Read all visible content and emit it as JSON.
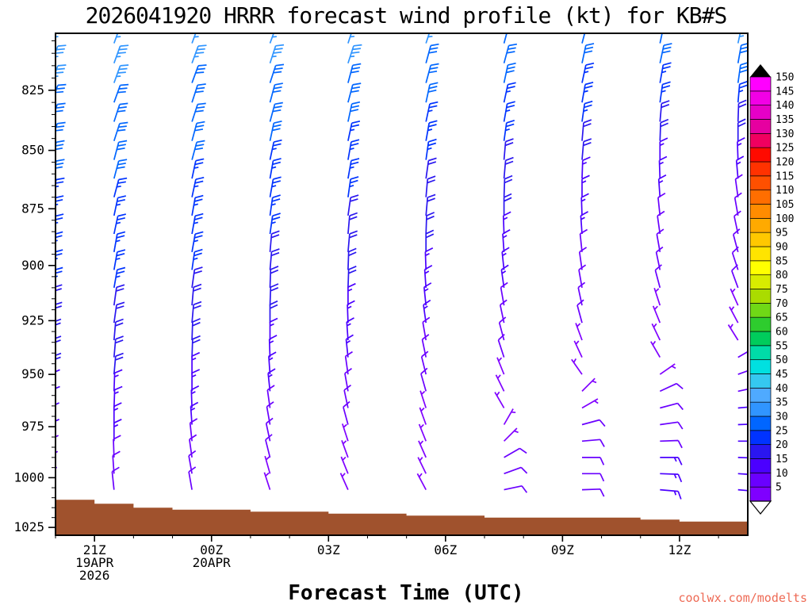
{
  "title": "2026041920 HRRR forecast wind profile (kt) for KB#S",
  "x_axis_label": "Forecast Time (UTC)",
  "watermark": "coolwx.com/modelts",
  "colors": {
    "background": "#ffffff",
    "axis": "#000000",
    "terrain": "#a0522d",
    "watermark": "#ee6a55"
  },
  "chart_data": {
    "type": "scatter",
    "subtype": "time-height wind barb profile",
    "model": "HRRR",
    "init_time": "2026041920",
    "station": "KB#S",
    "units": "kt",
    "x_axis": {
      "label": "Forecast Time (UTC)",
      "hour_range": [
        20.0,
        37.75
      ],
      "major_ticks": [
        {
          "hour": 21,
          "label": "21Z",
          "sub": [
            "19APR",
            "2026"
          ]
        },
        {
          "hour": 24,
          "label": "00Z",
          "sub": [
            "20APR"
          ]
        },
        {
          "hour": 27,
          "label": "03Z",
          "sub": []
        },
        {
          "hour": 30,
          "label": "06Z",
          "sub": []
        },
        {
          "hour": 33,
          "label": "09Z",
          "sub": []
        },
        {
          "hour": 36,
          "label": "12Z",
          "sub": []
        }
      ],
      "minor_tick_every_hours": 1
    },
    "y_axis": {
      "units": "hPa",
      "scale": "log",
      "range": [
        802,
        1029
      ],
      "major_ticks": [
        825,
        850,
        875,
        900,
        925,
        950,
        975,
        1000,
        1025
      ],
      "minor_step": 5
    },
    "legend": {
      "values_kt": [
        5,
        10,
        15,
        20,
        25,
        30,
        35,
        40,
        45,
        50,
        55,
        60,
        65,
        70,
        75,
        80,
        85,
        90,
        95,
        100,
        105,
        110,
        115,
        120,
        125,
        130,
        135,
        140,
        145,
        150
      ],
      "palette": [
        "#7f00ff",
        "#6a00ff",
        "#4b00ff",
        "#2a16f0",
        "#0033ff",
        "#0066ff",
        "#3095ff",
        "#4faaff",
        "#35c8f0",
        "#00e0e0",
        "#00dca8",
        "#00cc5c",
        "#2ecc2e",
        "#70d816",
        "#aadc00",
        "#d8ec00",
        "#ffff00",
        "#ffe400",
        "#ffc800",
        "#ffaa00",
        "#ff8c00",
        "#ff6e00",
        "#ff5000",
        "#ff3200",
        "#ff0a00",
        "#f00060",
        "#e600a0",
        "#e600c8",
        "#f200e6",
        "#ff00ff"
      ],
      "over_arrow": "black-up-triangle",
      "under_arrow": "white-down-triangle"
    },
    "terrain": {
      "color": "#a0522d",
      "surface_pressure_hpa_by_hour": [
        [
          20,
          1011
        ],
        [
          21,
          1013
        ],
        [
          22,
          1015
        ],
        [
          23,
          1016
        ],
        [
          24,
          1016
        ],
        [
          25,
          1017
        ],
        [
          26,
          1017
        ],
        [
          27,
          1018
        ],
        [
          28,
          1018
        ],
        [
          29,
          1019
        ],
        [
          30,
          1019
        ],
        [
          31,
          1020
        ],
        [
          32,
          1020
        ],
        [
          33,
          1020
        ],
        [
          34,
          1020
        ],
        [
          35,
          1021
        ],
        [
          36,
          1022
        ],
        [
          37,
          1022
        ],
        [
          38,
          1023
        ]
      ]
    },
    "pressure_levels_hpa": [
      806,
      814,
      822,
      830,
      838,
      846,
      854,
      862,
      870,
      878,
      886,
      894,
      902,
      910,
      918,
      926,
      934,
      942,
      950,
      958,
      966,
      974,
      982,
      990,
      998,
      1006
    ],
    "wind_columns": [
      {
        "hour": 19.9,
        "speed_kt": [
          35,
          35,
          35,
          30,
          30,
          30,
          30,
          30,
          25,
          25,
          25,
          25,
          25,
          25,
          20,
          20,
          20,
          20,
          20,
          15,
          15,
          15,
          15,
          10,
          10,
          10
        ],
        "direction_deg": [
          20,
          20,
          20,
          20,
          18,
          18,
          15,
          15,
          15,
          12,
          12,
          10,
          10,
          10,
          8,
          8,
          5,
          5,
          5,
          2,
          2,
          0,
          0,
          358,
          356,
          354
        ]
      },
      {
        "hour": 21.5,
        "speed_kt": [
          35,
          35,
          35,
          30,
          30,
          30,
          30,
          30,
          25,
          25,
          25,
          25,
          25,
          25,
          20,
          20,
          20,
          20,
          20,
          15,
          15,
          15,
          15,
          10,
          10,
          10
        ],
        "direction_deg": [
          20,
          20,
          20,
          20,
          18,
          18,
          15,
          15,
          15,
          12,
          12,
          10,
          10,
          10,
          8,
          8,
          5,
          5,
          5,
          2,
          2,
          0,
          0,
          358,
          356,
          354
        ]
      },
      {
        "hour": 23.5,
        "speed_kt": [
          35,
          35,
          30,
          30,
          30,
          30,
          30,
          25,
          25,
          25,
          25,
          25,
          25,
          20,
          20,
          20,
          20,
          20,
          15,
          15,
          15,
          15,
          10,
          10,
          10,
          10
        ],
        "direction_deg": [
          20,
          20,
          20,
          18,
          18,
          15,
          15,
          12,
          12,
          10,
          10,
          10,
          8,
          8,
          5,
          5,
          2,
          2,
          0,
          0,
          358,
          356,
          354,
          352,
          350,
          350
        ]
      },
      {
        "hour": 25.5,
        "speed_kt": [
          35,
          35,
          30,
          30,
          30,
          30,
          25,
          25,
          25,
          25,
          25,
          20,
          20,
          20,
          20,
          20,
          15,
          15,
          15,
          15,
          10,
          10,
          10,
          10,
          5,
          5
        ],
        "direction_deg": [
          20,
          18,
          18,
          15,
          15,
          12,
          12,
          10,
          10,
          8,
          8,
          5,
          5,
          2,
          2,
          0,
          0,
          358,
          356,
          354,
          352,
          350,
          348,
          346,
          344,
          342
        ]
      },
      {
        "hour": 27.5,
        "speed_kt": [
          35,
          35,
          30,
          30,
          30,
          25,
          25,
          25,
          25,
          20,
          20,
          20,
          20,
          20,
          15,
          15,
          15,
          15,
          10,
          10,
          10,
          10,
          5,
          5,
          5,
          5
        ],
        "direction_deg": [
          18,
          18,
          15,
          15,
          12,
          12,
          10,
          10,
          8,
          8,
          5,
          5,
          2,
          2,
          0,
          358,
          356,
          354,
          352,
          350,
          348,
          345,
          342,
          340,
          338,
          336
        ]
      },
      {
        "hour": 29.5,
        "speed_kt": [
          35,
          30,
          30,
          30,
          25,
          25,
          25,
          20,
          20,
          20,
          20,
          20,
          15,
          15,
          15,
          15,
          10,
          10,
          10,
          10,
          5,
          5,
          5,
          5,
          5,
          5
        ],
        "direction_deg": [
          18,
          15,
          15,
          12,
          12,
          10,
          8,
          8,
          5,
          5,
          2,
          0,
          358,
          356,
          354,
          352,
          350,
          348,
          346,
          344,
          342,
          340,
          338,
          336,
          334,
          332
        ]
      },
      {
        "hour": 31.5,
        "speed_kt": [
          30,
          30,
          30,
          25,
          25,
          25,
          20,
          20,
          20,
          20,
          15,
          15,
          15,
          15,
          10,
          10,
          10,
          10,
          5,
          5,
          5,
          5,
          5,
          10,
          10,
          10
        ],
        "direction_deg": [
          15,
          15,
          12,
          12,
          10,
          8,
          5,
          5,
          2,
          0,
          358,
          356,
          354,
          352,
          350,
          348,
          345,
          342,
          338,
          334,
          330,
          30,
          45,
          60,
          70,
          78
        ]
      },
      {
        "hour": 33.5,
        "speed_kt": [
          30,
          30,
          25,
          25,
          25,
          20,
          20,
          15,
          15,
          15,
          15,
          10,
          10,
          10,
          10,
          10,
          5,
          5,
          5,
          5,
          5,
          10,
          10,
          10,
          10,
          10
        ],
        "direction_deg": [
          15,
          12,
          12,
          10,
          8,
          5,
          5,
          2,
          0,
          358,
          356,
          354,
          352,
          350,
          348,
          345,
          340,
          335,
          325,
          45,
          60,
          75,
          85,
          90,
          90,
          88
        ]
      },
      {
        "hour": 35.5,
        "speed_kt": [
          30,
          30,
          25,
          25,
          20,
          20,
          15,
          15,
          15,
          10,
          10,
          10,
          10,
          10,
          5,
          5,
          5,
          5,
          5,
          10,
          10,
          10,
          10,
          15,
          15,
          15
        ],
        "direction_deg": [
          12,
          12,
          10,
          8,
          5,
          2,
          0,
          358,
          356,
          354,
          352,
          350,
          348,
          345,
          342,
          338,
          334,
          330,
          55,
          65,
          75,
          82,
          88,
          90,
          92,
          95
        ]
      },
      {
        "hour": 37.5,
        "speed_kt": [
          35,
          30,
          30,
          25,
          20,
          20,
          15,
          15,
          10,
          10,
          10,
          10,
          10,
          10,
          5,
          5,
          5,
          10,
          10,
          10,
          15,
          15,
          15,
          15,
          15,
          15
        ],
        "direction_deg": [
          12,
          10,
          8,
          5,
          2,
          0,
          358,
          355,
          352,
          350,
          348,
          345,
          342,
          340,
          336,
          332,
          328,
          60,
          70,
          78,
          85,
          88,
          90,
          92,
          94,
          95
        ]
      }
    ]
  }
}
